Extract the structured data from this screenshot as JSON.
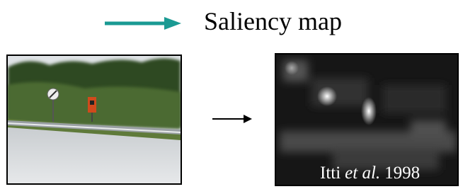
{
  "header": {
    "title": "Saliency map"
  },
  "figure": {
    "credit": {
      "author": "Itti",
      "etal": "et al.",
      "year": "1998"
    }
  }
}
